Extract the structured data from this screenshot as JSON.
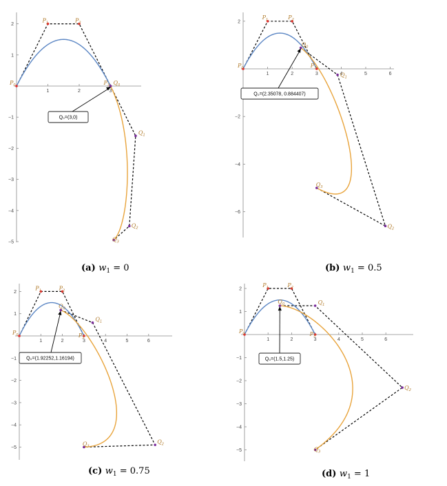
{
  "chart_data": [
    {
      "type": "line",
      "caption": {
        "tag": "(a)",
        "var": "w",
        "sub": "1",
        "rest": "= 0"
      },
      "xlim": [
        0,
        4
      ],
      "ylim": [
        -5,
        2
      ],
      "xticks": [
        1,
        2,
        3
      ],
      "yticks": [
        2,
        1,
        -1,
        -2,
        -3,
        -4,
        -5
      ],
      "blue_curve": {
        "name": "",
        "control": [
          [
            0,
            0
          ],
          [
            1,
            2
          ],
          [
            2,
            2
          ],
          [
            3,
            0
          ]
        ]
      },
      "orange_curve": {
        "name": "",
        "control": [
          [
            3,
            0
          ],
          [
            3.8,
            -1.6
          ],
          [
            3.6,
            -4.5
          ],
          [
            3.1,
            -4.95
          ]
        ],
        "weight1": 0
      },
      "points": [
        {
          "id": "P0",
          "label": "P",
          "sub": "0",
          "x": 0,
          "y": 0,
          "color": "#e03030"
        },
        {
          "id": "P1",
          "label": "P",
          "sub": "1",
          "x": 1,
          "y": 2,
          "color": "#e03030"
        },
        {
          "id": "P2",
          "label": "P",
          "sub": "2",
          "x": 2,
          "y": 2,
          "color": "#e03030"
        },
        {
          "id": "P3",
          "label": "P",
          "sub": "3",
          "x": 3,
          "y": 0,
          "color": "#e03030"
        },
        {
          "id": "Q0",
          "label": "Q",
          "sub": "0",
          "x": 3,
          "y": 0,
          "color": "#7a2a9a"
        },
        {
          "id": "Q1",
          "label": "Q",
          "sub": "1",
          "x": 3.8,
          "y": -1.6,
          "color": "#7a2a9a"
        },
        {
          "id": "Q2",
          "label": "Q",
          "sub": "2",
          "x": 3.6,
          "y": -4.5,
          "color": "#7a2a9a"
        },
        {
          "id": "Q3",
          "label": "Q",
          "sub": "3",
          "x": 3.1,
          "y": -4.95,
          "color": "#7a2a9a"
        }
      ],
      "annotation": {
        "text": "Q₀=(3,0)",
        "x": 3,
        "y": 0
      }
    },
    {
      "type": "line",
      "caption": {
        "tag": "(b)",
        "var": "w",
        "sub": "1",
        "rest": "= 0.5"
      },
      "xlim": [
        0,
        6.3
      ],
      "ylim": [
        -7,
        2
      ],
      "xticks": [
        1,
        2,
        3,
        4,
        5,
        6
      ],
      "yticks": [
        2,
        -2,
        -4,
        -6
      ],
      "blue_curve": {
        "name": "",
        "control": [
          [
            0,
            0
          ],
          [
            1,
            2
          ],
          [
            2,
            2
          ],
          [
            3,
            0
          ]
        ]
      },
      "orange_curve": {
        "name": "",
        "control": [
          [
            2.35078,
            0.884407
          ],
          [
            3.85,
            -0.25
          ],
          [
            5.8,
            -6.6
          ],
          [
            3,
            -5
          ]
        ],
        "weight1": 0.5
      },
      "points": [
        {
          "id": "P0",
          "label": "P",
          "sub": "0",
          "x": 0,
          "y": 0,
          "color": "#e03030"
        },
        {
          "id": "P1",
          "label": "P",
          "sub": "1",
          "x": 1,
          "y": 2,
          "color": "#e03030"
        },
        {
          "id": "P2",
          "label": "P",
          "sub": "2",
          "x": 2,
          "y": 2,
          "color": "#e03030"
        },
        {
          "id": "P3",
          "label": "P",
          "sub": "3",
          "x": 3,
          "y": 0,
          "color": "#e03030"
        },
        {
          "id": "Q0",
          "label": "Q",
          "sub": "0",
          "x": 2.35078,
          "y": 0.884407,
          "color": "#7a2a9a"
        },
        {
          "id": "Q1",
          "label": "Q",
          "sub": "1",
          "x": 3.85,
          "y": -0.25,
          "color": "#7a2a9a"
        },
        {
          "id": "Q2",
          "label": "Q",
          "sub": "2",
          "x": 5.8,
          "y": -6.6,
          "color": "#7a2a9a"
        },
        {
          "id": "Q3",
          "label": "Q",
          "sub": "3",
          "x": 3,
          "y": -5,
          "color": "#7a2a9a"
        }
      ],
      "annotation": {
        "text": "Q₀=(2.35078, 0.884407)",
        "x": 2.35078,
        "y": 0.884407
      }
    },
    {
      "type": "line",
      "caption": {
        "tag": "(c)",
        "var": "w",
        "sub": "1",
        "rest": "= 0.75"
      },
      "xlim": [
        0,
        6.6
      ],
      "ylim": [
        -5.3,
        2.3
      ],
      "xticks": [
        1,
        2,
        3,
        4,
        5,
        6
      ],
      "yticks": [
        2,
        1,
        -1,
        -2,
        -3,
        -4,
        -5
      ],
      "blue_curve": {
        "name": "",
        "control": [
          [
            0,
            0
          ],
          [
            1,
            2
          ],
          [
            2,
            2
          ],
          [
            3,
            0
          ]
        ]
      },
      "orange_curve": {
        "name": "",
        "control": [
          [
            1.92252,
            1.16194
          ],
          [
            3.4,
            0.6
          ],
          [
            6.3,
            -4.9
          ],
          [
            3,
            -5
          ]
        ],
        "weight1": 0.75
      },
      "points": [
        {
          "id": "P0",
          "label": "P",
          "sub": "0",
          "x": 0,
          "y": 0,
          "color": "#e03030"
        },
        {
          "id": "P1",
          "label": "P",
          "sub": "1",
          "x": 1,
          "y": 2,
          "color": "#e03030"
        },
        {
          "id": "P2",
          "label": "P",
          "sub": "2",
          "x": 2,
          "y": 2,
          "color": "#e03030"
        },
        {
          "id": "P3",
          "label": "P",
          "sub": "3",
          "x": 3,
          "y": 0,
          "color": "#e03030"
        },
        {
          "id": "Q0",
          "label": "Q",
          "sub": "0",
          "x": 1.92252,
          "y": 1.16194,
          "color": "#7a2a9a"
        },
        {
          "id": "Q1",
          "label": "Q",
          "sub": "1",
          "x": 3.4,
          "y": 0.6,
          "color": "#7a2a9a"
        },
        {
          "id": "Q2",
          "label": "Q",
          "sub": "2",
          "x": 6.3,
          "y": -4.9,
          "color": "#7a2a9a"
        },
        {
          "id": "Q3",
          "label": "Q",
          "sub": "3",
          "x": 3,
          "y": -5,
          "color": "#7a2a9a"
        }
      ],
      "annotation": {
        "text": "Q₀=(1.92252,1.16194)",
        "x": 1.92252,
        "y": 1.16194
      }
    },
    {
      "type": "line",
      "caption": {
        "tag": "(d)",
        "var": "w",
        "sub": "1",
        "rest": "= 1"
      },
      "xlim": [
        0,
        7
      ],
      "ylim": [
        -5.3,
        2.3
      ],
      "xticks": [
        1,
        2,
        3,
        4,
        5,
        6
      ],
      "yticks": [
        2,
        1,
        -1,
        -2,
        -3,
        -4,
        -5
      ],
      "blue_curve": {
        "name": "",
        "control": [
          [
            0,
            0
          ],
          [
            1,
            2
          ],
          [
            2,
            2
          ],
          [
            3,
            0
          ]
        ]
      },
      "orange_curve": {
        "name": "",
        "control": [
          [
            1.5,
            1.25
          ],
          [
            3,
            1.25
          ],
          [
            6.7,
            -2.3
          ],
          [
            3,
            -5
          ]
        ],
        "weight1": 1
      },
      "points": [
        {
          "id": "P0",
          "label": "P",
          "sub": "0",
          "x": 0,
          "y": 0,
          "color": "#e03030"
        },
        {
          "id": "P1",
          "label": "P",
          "sub": "1",
          "x": 1,
          "y": 2,
          "color": "#e03030"
        },
        {
          "id": "P2",
          "label": "P",
          "sub": "2",
          "x": 2,
          "y": 2,
          "color": "#e03030"
        },
        {
          "id": "P3",
          "label": "P",
          "sub": "3",
          "x": 3,
          "y": 0,
          "color": "#e03030"
        },
        {
          "id": "Q0",
          "label": "Q",
          "sub": "0",
          "x": 1.5,
          "y": 1.25,
          "color": "#7a2a9a"
        },
        {
          "id": "Q1",
          "label": "Q",
          "sub": "1",
          "x": 3,
          "y": 1.25,
          "color": "#7a2a9a"
        },
        {
          "id": "Q2",
          "label": "Q",
          "sub": "2",
          "x": 6.7,
          "y": -2.3,
          "color": "#7a2a9a"
        },
        {
          "id": "Q3",
          "label": "Q",
          "sub": "3",
          "x": 3,
          "y": -5,
          "color": "#7a2a9a"
        }
      ],
      "annotation": {
        "text": "Q₀=(1.5,1.25)",
        "x": 1.5,
        "y": 1.25
      }
    }
  ],
  "colors": {
    "blue_curve": "#5b86c4",
    "orange_curve": "#e8a33a"
  }
}
